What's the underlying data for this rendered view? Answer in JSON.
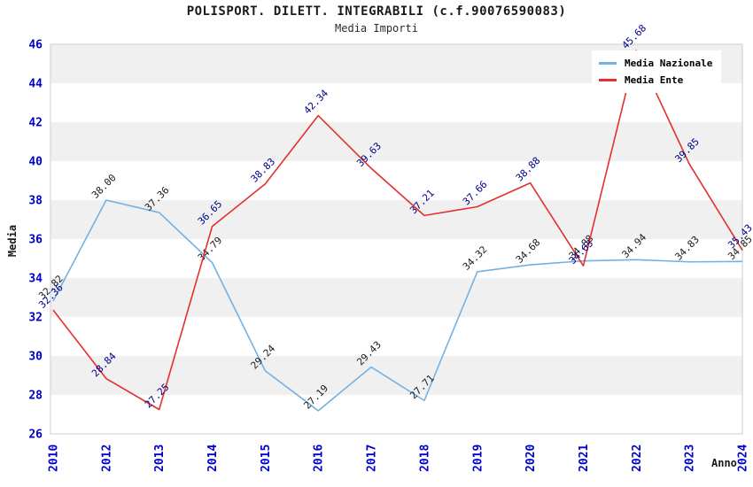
{
  "header": {
    "title": "POLISPORT. DILETT. INTEGRABILI (c.f.90076590083)",
    "subtitle": "Media Importi"
  },
  "chart_data": {
    "type": "line",
    "title": "POLISPORT. DILETT. INTEGRABILI (c.f.90076590083)",
    "subtitle": "Media Importi",
    "xlabel": "Anno",
    "ylabel": "Media",
    "ylim": [
      26,
      46
    ],
    "ytick_step": 2,
    "grid": "alternating-horizontal-bands",
    "band_color": "#f0f0f0",
    "border_color": "#cccccc",
    "axis_tick_color": "#0000cc",
    "legend_position": "top-right",
    "x_categories": [
      "2010",
      "2012",
      "2013",
      "2014",
      "2015",
      "2016",
      "2017",
      "2018",
      "2019",
      "2020",
      "2021",
      "2022",
      "2023",
      "2024"
    ],
    "series": [
      {
        "name": "Media Nazionale",
        "color": "#74b1e1",
        "label_color": "#1a1a1a",
        "values": [
          32.82,
          38.0,
          37.36,
          34.79,
          29.24,
          27.19,
          29.43,
          27.71,
          34.32,
          34.68,
          34.88,
          34.94,
          34.83,
          34.85
        ]
      },
      {
        "name": "Media Ente",
        "color": "#e62e2e",
        "label_color": "#00008b",
        "values": [
          32.36,
          28.84,
          27.25,
          36.65,
          38.83,
          42.34,
          39.63,
          37.21,
          37.66,
          38.88,
          34.63,
          45.68,
          39.85,
          35.43
        ]
      }
    ]
  }
}
